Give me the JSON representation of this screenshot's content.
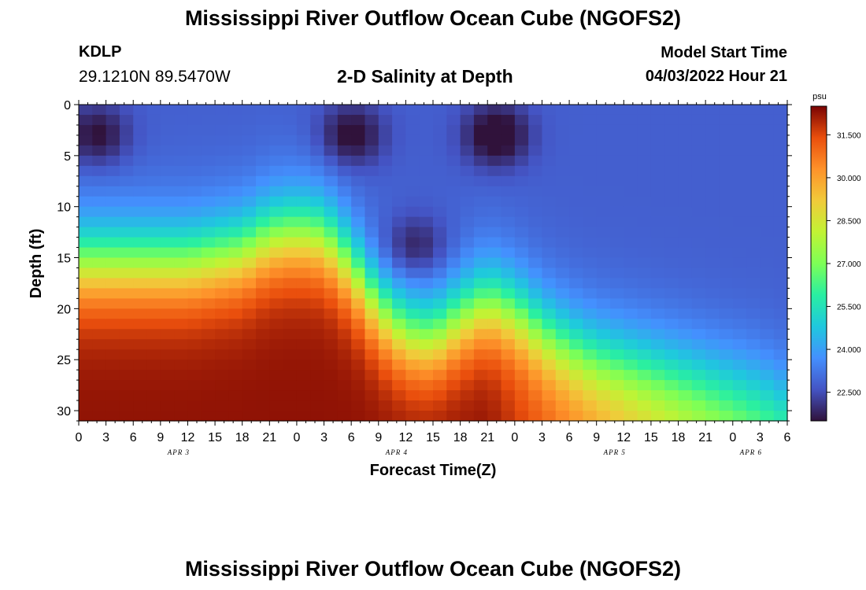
{
  "header": {
    "title": "Mississippi River Outflow Ocean Cube (NGOFS2)",
    "station": "KDLP",
    "coords": "29.1210N  89.5470W",
    "plot_title": "2-D Salinity at Depth",
    "start_label": "Model Start Time",
    "start_value": "04/03/2022 Hour 21"
  },
  "footer": {
    "title": "Mississippi River Outflow Ocean Cube (NGOFS2)"
  },
  "chart_data": {
    "type": "heatmap",
    "title": "2-D Salinity at Depth",
    "xlabel": "Forecast Time(Z)",
    "ylabel": "Depth (ft)",
    "x_tick_labels": [
      "0",
      "3",
      "6",
      "9",
      "12",
      "15",
      "18",
      "21",
      "0",
      "3",
      "6",
      "9",
      "12",
      "15",
      "18",
      "21",
      "0",
      "3",
      "6",
      "9",
      "12",
      "15",
      "18",
      "21",
      "0",
      "3",
      "6"
    ],
    "x_hours": [
      0,
      3,
      6,
      9,
      12,
      15,
      18,
      21,
      24,
      27,
      30,
      33,
      36,
      39,
      42,
      45,
      48,
      51,
      54,
      57,
      60,
      63,
      66,
      69,
      72,
      75,
      78
    ],
    "day_labels": [
      {
        "label": "APR 3",
        "hour": 11
      },
      {
        "label": "APR 4",
        "hour": 35
      },
      {
        "label": "APR 5",
        "hour": 59
      },
      {
        "label": "APR 6",
        "hour": 74
      }
    ],
    "y_ticks": [
      0,
      5,
      10,
      15,
      20,
      25,
      30
    ],
    "ylim": [
      0,
      31
    ],
    "xlim": [
      0,
      78
    ],
    "colorbar": {
      "unit": "psu",
      "ticks": [
        "31.500",
        "30.000",
        "28.500",
        "27.000",
        "25.500",
        "24.000",
        "22.500"
      ],
      "tick_values": [
        31.5,
        30.0,
        28.5,
        27.0,
        25.5,
        24.0,
        22.5
      ],
      "range": [
        21.5,
        32.5
      ]
    },
    "halocline_depth": {
      "hours": [
        0,
        6,
        12,
        18,
        21,
        24,
        27,
        30,
        33,
        36,
        39,
        42,
        45,
        48,
        51,
        54,
        57,
        60,
        63,
        66,
        69,
        72,
        75,
        78
      ],
      "depth_ft": [
        15.5,
        15.5,
        15.5,
        14.5,
        13,
        12.5,
        13,
        16,
        20,
        22.5,
        23,
        21,
        19.5,
        20.5,
        22.5,
        24,
        25,
        25.5,
        26,
        26.5,
        27,
        27.5,
        28,
        29
      ]
    },
    "surface_fresh_patches": [
      {
        "hour": 2,
        "depth_ft": 3,
        "salinity": 22.0
      },
      {
        "hour": 30,
        "depth_ft": 3,
        "salinity": 21.9
      },
      {
        "hour": 46,
        "depth_ft": 3,
        "salinity": 21.6
      },
      {
        "hour": 37,
        "depth_ft": 14,
        "salinity": 22.2
      }
    ],
    "upper_salinity": 22.8,
    "bottom_salinity": 32.3,
    "bottom_salinity_end": 27.0
  }
}
